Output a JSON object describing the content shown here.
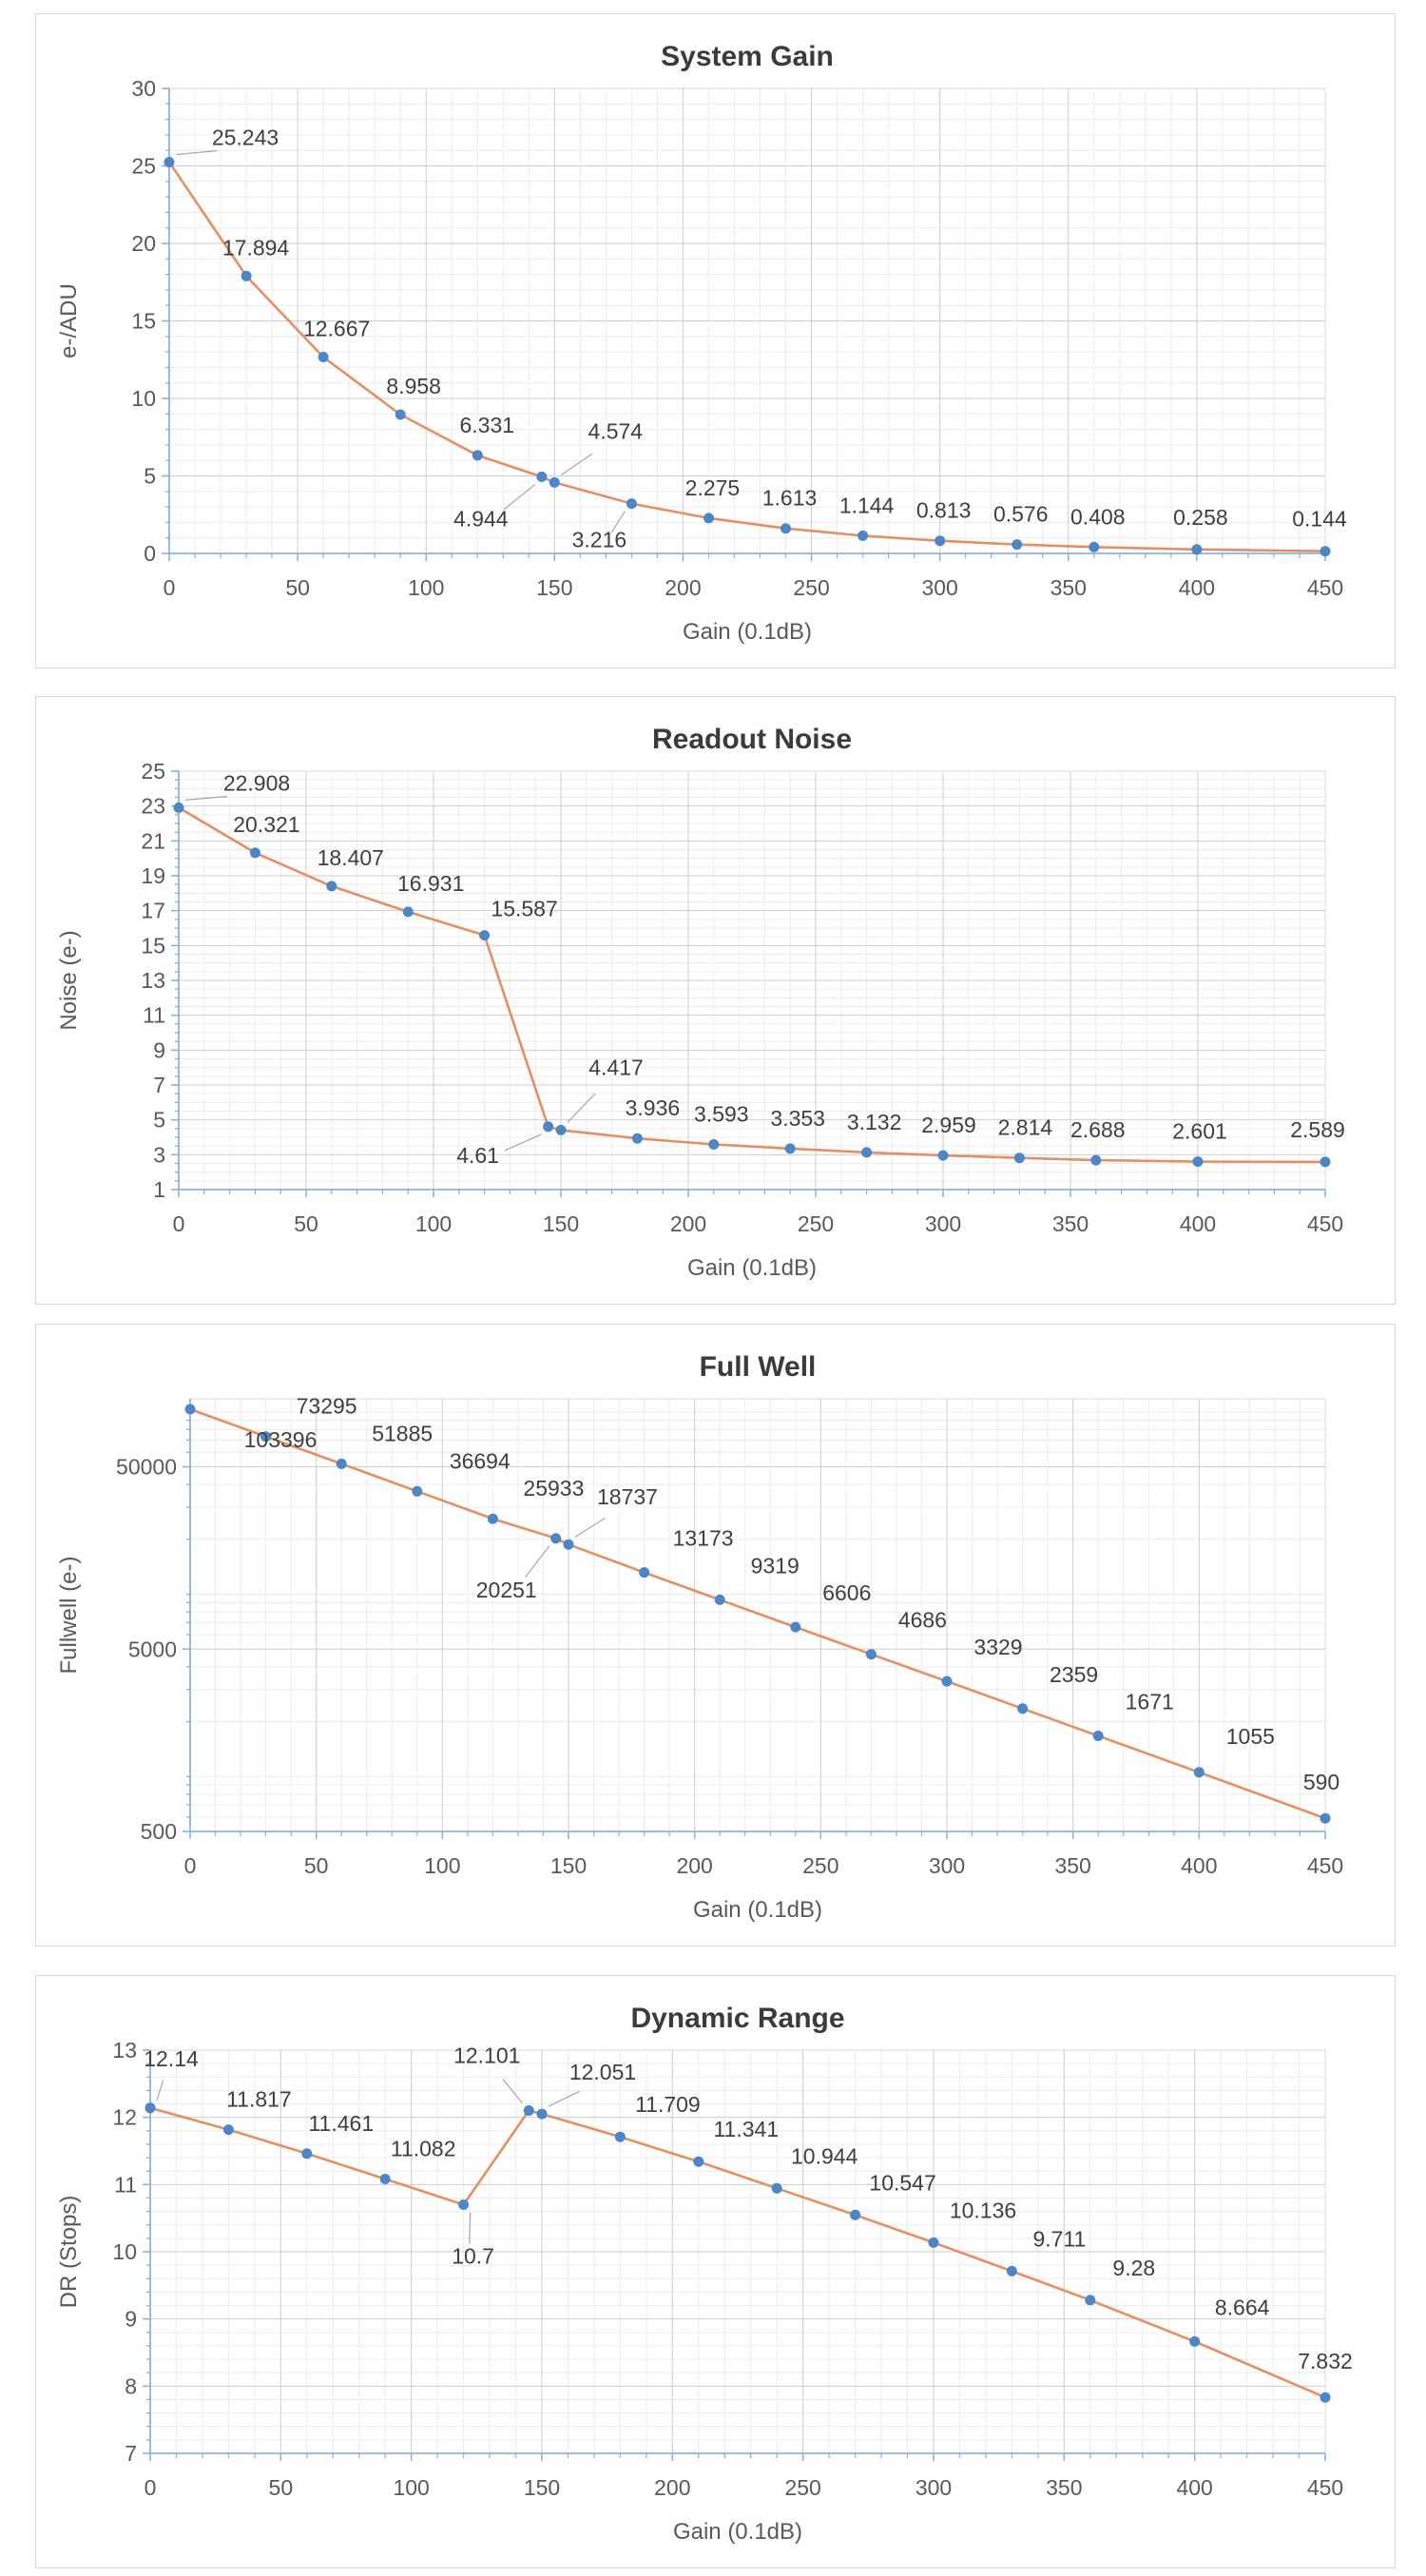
{
  "colors": {
    "series_line": "#E78E63",
    "marker": "#4A86C8",
    "axis": "#8AB4E0",
    "gridline_major": "#CDCDCD",
    "gridline_minor": "#ECECEC",
    "plot_border": "#D9D9D9",
    "tick_label": "#595959",
    "data_label": "#3F3F3F",
    "title": "#3B3B3B",
    "leader": "#A6A6A6"
  },
  "chart_data": [
    {
      "type": "line",
      "title": "System Gain",
      "xlabel": "Gain (0.1dB)",
      "ylabel": "e-/ADU",
      "x": [
        0,
        30,
        60,
        90,
        120,
        145,
        150,
        180,
        210,
        240,
        270,
        300,
        330,
        360,
        400,
        450
      ],
      "values": [
        25.243,
        17.894,
        12.667,
        8.958,
        6.331,
        4.944,
        4.574,
        3.216,
        2.275,
        1.613,
        1.144,
        0.813,
        0.576,
        0.408,
        0.258,
        0.144
      ],
      "point_labels": [
        "25.243",
        "17.894",
        "12.667",
        "8.958",
        "6.331",
        "4.944",
        "4.574",
        "3.216",
        "2.275",
        "1.613",
        "1.144",
        "0.813",
        "0.576",
        "0.408",
        "0.258",
        "0.144"
      ],
      "xlim": [
        0,
        450
      ],
      "x_major_step": 50,
      "x_minor_step": 10,
      "x_tick_labels": [
        "0",
        "50",
        "100",
        "150",
        "200",
        "250",
        "300",
        "350",
        "400",
        "450"
      ],
      "y_scale": "linear",
      "ylim": [
        0,
        30
      ],
      "y_major_step": 5,
      "y_minor_step": 1,
      "y_tick_labels": [
        "0",
        "5",
        "10",
        "15",
        "20",
        "25",
        "30"
      ],
      "grid": true,
      "legend": null,
      "label_layout": [
        [
          80,
          -18,
          1
        ],
        [
          10,
          -22,
          0
        ],
        [
          14,
          -22,
          0
        ],
        [
          14,
          -22,
          0
        ],
        [
          10,
          -24,
          0
        ],
        [
          -64,
          52,
          1
        ],
        [
          64,
          -46,
          1
        ],
        [
          -34,
          46,
          1
        ],
        [
          4,
          -24,
          0
        ],
        [
          4,
          -24,
          0
        ],
        [
          4,
          -24,
          0
        ],
        [
          4,
          -24,
          0
        ],
        [
          4,
          -24,
          0
        ],
        [
          4,
          -24,
          0
        ],
        [
          4,
          -26,
          0
        ],
        [
          -6,
          -26,
          0
        ]
      ]
    },
    {
      "type": "line",
      "title": "Readout Noise",
      "xlabel": "Gain (0.1dB)",
      "ylabel": "Noise (e-)",
      "x": [
        0,
        30,
        60,
        90,
        120,
        145,
        150,
        180,
        210,
        240,
        270,
        300,
        330,
        360,
        400,
        450
      ],
      "values": [
        22.908,
        20.321,
        18.407,
        16.931,
        15.587,
        4.61,
        4.417,
        3.936,
        3.593,
        3.353,
        3.132,
        2.959,
        2.814,
        2.688,
        2.601,
        2.589
      ],
      "point_labels": [
        "22.908",
        "20.321",
        "18.407",
        "16.931",
        "15.587",
        "4.61",
        "4.417",
        "3.936",
        "3.593",
        "3.353",
        "3.132",
        "2.959",
        "2.814",
        "2.688",
        "2.601",
        "2.589"
      ],
      "xlim": [
        0,
        450
      ],
      "x_major_step": 50,
      "x_minor_step": 10,
      "x_tick_labels": [
        "0",
        "50",
        "100",
        "150",
        "200",
        "250",
        "300",
        "350",
        "400",
        "450"
      ],
      "y_scale": "linear",
      "ylim": [
        1,
        25
      ],
      "y_major_step": 2,
      "y_minor_step": 0.5,
      "y_tick_labels": [
        "1",
        "3",
        "5",
        "7",
        "9",
        "11",
        "13",
        "15",
        "17",
        "19",
        "21",
        "23",
        "25"
      ],
      "grid": true,
      "legend": null,
      "label_layout": [
        [
          82,
          -18,
          1
        ],
        [
          12,
          -22,
          0
        ],
        [
          20,
          -22,
          0
        ],
        [
          24,
          -22,
          0
        ],
        [
          42,
          -20,
          0
        ],
        [
          -74,
          38,
          1
        ],
        [
          58,
          -58,
          1
        ],
        [
          16,
          -24,
          0
        ],
        [
          8,
          -24,
          0
        ],
        [
          8,
          -24,
          0
        ],
        [
          8,
          -24,
          0
        ],
        [
          6,
          -24,
          0
        ],
        [
          6,
          -24,
          0
        ],
        [
          2,
          -24,
          0
        ],
        [
          2,
          -24,
          0
        ],
        [
          -8,
          -26,
          0
        ]
      ]
    },
    {
      "type": "line",
      "title": "Full Well",
      "xlabel": "Gain (0.1dB)",
      "ylabel": "Fullwell (e-)",
      "x": [
        0,
        30,
        60,
        90,
        120,
        145,
        150,
        180,
        210,
        240,
        270,
        300,
        330,
        360,
        400,
        450
      ],
      "values": [
        103396,
        73295,
        51885,
        36694,
        25933,
        20251,
        18737,
        13173,
        9319,
        6606,
        4686,
        3329,
        2359,
        1671,
        1055,
        590
      ],
      "point_labels": [
        "103396",
        "73295",
        "51885",
        "36694",
        "25933",
        "20251",
        "18737",
        "13173",
        "9319",
        "6606",
        "4686",
        "3329",
        "2359",
        "1671",
        "1055",
        "590"
      ],
      "xlim": [
        0,
        450
      ],
      "x_major_step": 50,
      "x_minor_step": 10,
      "x_tick_labels": [
        "0",
        "50",
        "100",
        "150",
        "200",
        "250",
        "300",
        "350",
        "400",
        "450"
      ],
      "y_scale": "log",
      "ylim": [
        500,
        118000
      ],
      "y_majors": [
        500,
        5000,
        50000
      ],
      "y_tick_labels": [
        "500",
        "5000",
        "50000"
      ],
      "grid": true,
      "legend": null,
      "label_layout": [
        [
          95,
          40,
          0
        ],
        [
          64,
          -24,
          0
        ],
        [
          64,
          -24,
          0
        ],
        [
          66,
          -24,
          0
        ],
        [
          64,
          -24,
          0
        ],
        [
          -52,
          62,
          1
        ],
        [
          62,
          -42,
          1
        ],
        [
          62,
          -28,
          0
        ],
        [
          58,
          -28,
          0
        ],
        [
          54,
          -28,
          0
        ],
        [
          54,
          -28,
          0
        ],
        [
          54,
          -28,
          0
        ],
        [
          54,
          -28,
          0
        ],
        [
          54,
          -28,
          0
        ],
        [
          54,
          -30,
          0
        ],
        [
          -4,
          -30,
          0
        ]
      ]
    },
    {
      "type": "line",
      "title": "Dynamic Range",
      "xlabel": "Gain (0.1dB)",
      "ylabel": "DR (Stops)",
      "x": [
        0,
        30,
        60,
        90,
        120,
        145,
        150,
        180,
        210,
        240,
        270,
        300,
        330,
        360,
        400,
        450
      ],
      "values": [
        12.14,
        11.817,
        11.461,
        11.082,
        10.7,
        12.101,
        12.051,
        11.709,
        11.341,
        10.944,
        10.547,
        10.136,
        9.711,
        9.28,
        8.664,
        7.832
      ],
      "point_labels": [
        "12.14",
        "11.817",
        "11.461",
        "11.082",
        "10.7",
        "12.101",
        "12.051",
        "11.709",
        "11.341",
        "10.944",
        "10.547",
        "10.136",
        "9.711",
        "9.28",
        "8.664",
        "7.832"
      ],
      "xlim": [
        0,
        450
      ],
      "x_major_step": 50,
      "x_minor_step": 10,
      "x_tick_labels": [
        "0",
        "50",
        "100",
        "150",
        "200",
        "250",
        "300",
        "350",
        "400",
        "450"
      ],
      "y_scale": "linear",
      "ylim": [
        7,
        13
      ],
      "y_major_step": 1,
      "y_minor_step": 0.2,
      "y_tick_labels": [
        "7",
        "8",
        "9",
        "10",
        "11",
        "12",
        "13"
      ],
      "grid": true,
      "legend": null,
      "label_layout": [
        [
          22,
          -44,
          1
        ],
        [
          32,
          -24,
          0
        ],
        [
          36,
          -24,
          0
        ],
        [
          40,
          -24,
          0
        ],
        [
          10,
          62,
          1
        ],
        [
          -44,
          -50,
          1
        ],
        [
          64,
          -36,
          1
        ],
        [
          50,
          -26,
          0
        ],
        [
          50,
          -26,
          0
        ],
        [
          50,
          -26,
          0
        ],
        [
          50,
          -26,
          0
        ],
        [
          52,
          -26,
          0
        ],
        [
          50,
          -26,
          0
        ],
        [
          46,
          -26,
          0
        ],
        [
          50,
          -28,
          0
        ],
        [
          0,
          -30,
          0
        ]
      ]
    }
  ]
}
